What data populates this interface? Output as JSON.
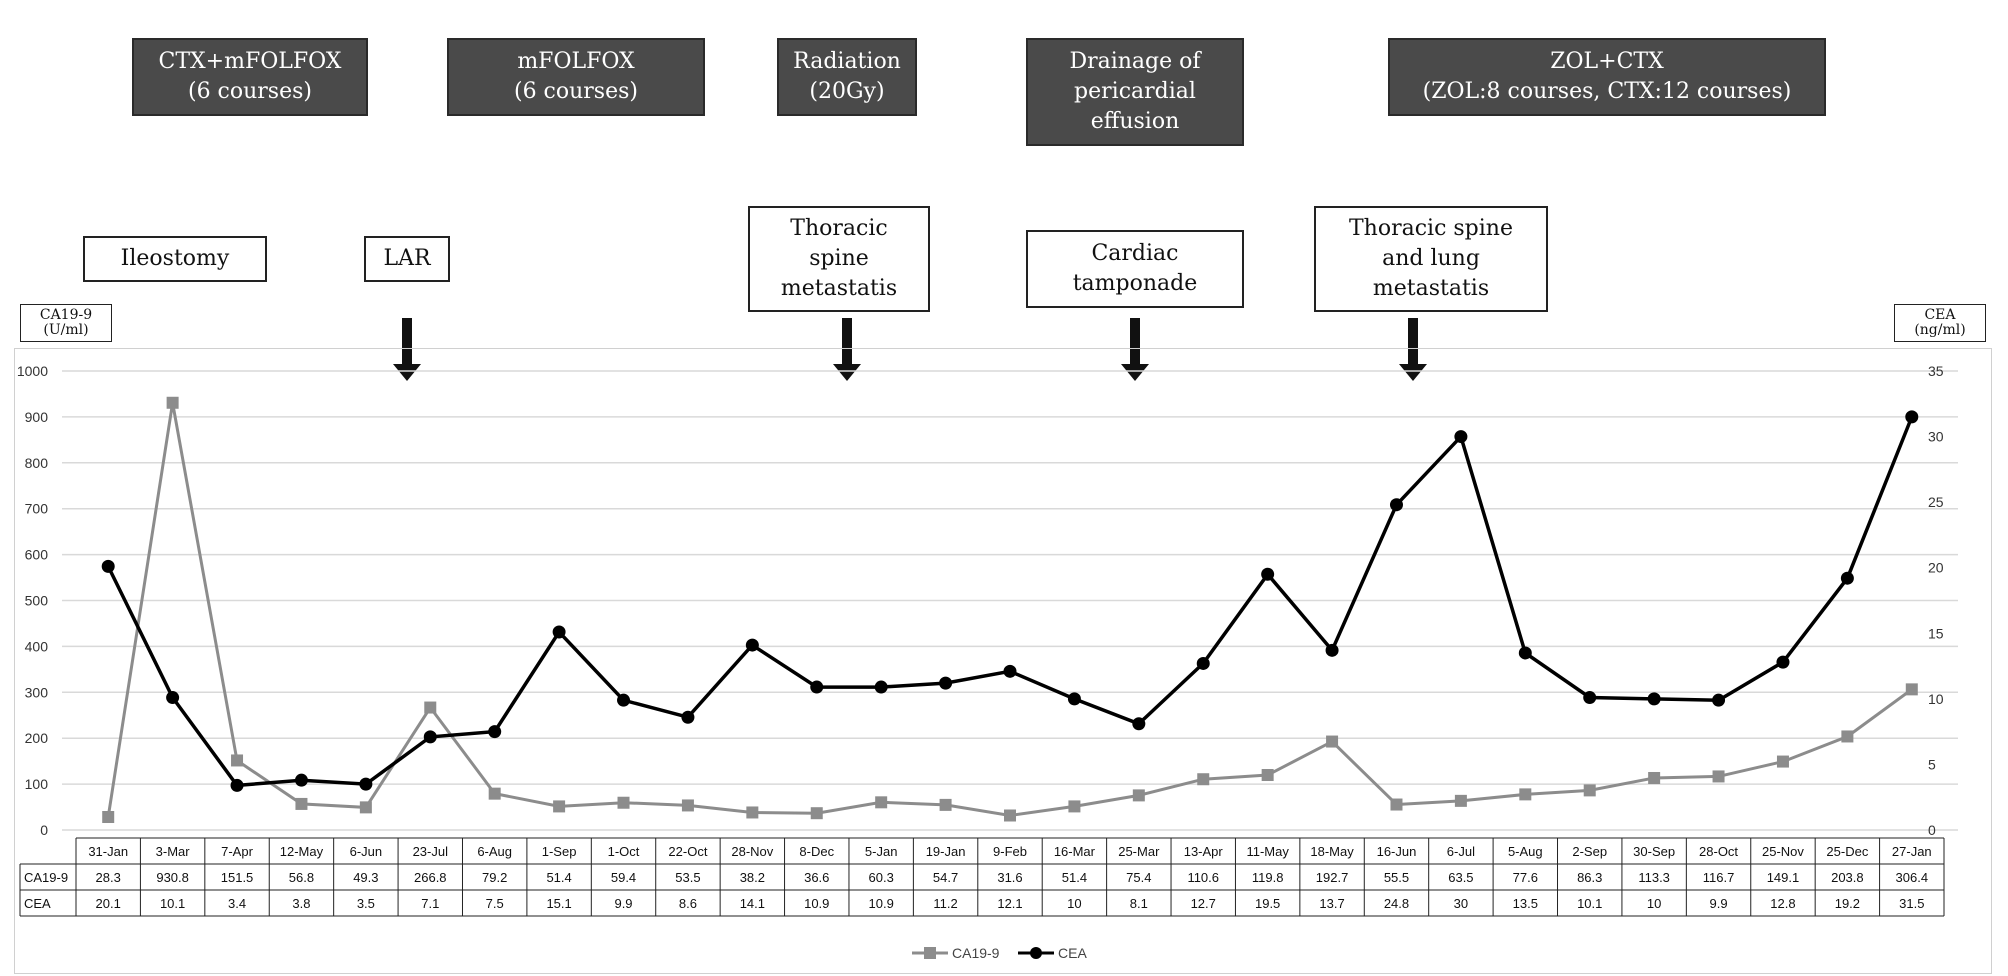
{
  "treatments": [
    {
      "label": "CTX+mFOLFOX\n(6 courses)"
    },
    {
      "label": "mFOLFOX\n(6 courses)"
    },
    {
      "label": "Radiation\n(20Gy)"
    },
    {
      "label": "Drainage of\npericardial\neffusion"
    },
    {
      "label": "ZOL+CTX\n(ZOL:8 courses, CTX:12 courses)"
    }
  ],
  "events": [
    {
      "label": "Ileostomy"
    },
    {
      "label": "LAR"
    },
    {
      "label": "Thoracic\nspine\nmetastatis"
    },
    {
      "label": "Cardiac\ntamponade"
    },
    {
      "label": "Thoracic spine\nand lung\nmetastatis"
    }
  ],
  "left_unit": "CA19-9\n(U/ml)",
  "right_unit": "CEA\n(ng/ml)",
  "colors": {
    "ca199": "#8c8c8c",
    "cea": "#000000",
    "grid": "#d9d9d9",
    "treatment_box": "#4a4a4a"
  },
  "chart_data": {
    "type": "line",
    "categories": [
      "31-Jan",
      "3-Mar",
      "7-Apr",
      "12-May",
      "6-Jun",
      "23-Jul",
      "6-Aug",
      "1-Sep",
      "1-Oct",
      "22-Oct",
      "28-Nov",
      "8-Dec",
      "5-Jan",
      "19-Jan",
      "9-Feb",
      "16-Mar",
      "25-Mar",
      "13-Apr",
      "11-May",
      "18-May",
      "16-Jun",
      "6-Jul",
      "5-Aug",
      "2-Sep",
      "30-Sep",
      "28-Oct",
      "25-Nov",
      "25-Dec",
      "27-Jan"
    ],
    "series": [
      {
        "name": "CA19-9",
        "axis": "left",
        "marker": "square",
        "values": [
          28.3,
          930.8,
          151.5,
          56.8,
          49.3,
          266.8,
          79.2,
          51.4,
          59.4,
          53.5,
          38.2,
          36.6,
          60.3,
          54.7,
          31.6,
          51.4,
          75.4,
          110.6,
          119.8,
          192.7,
          55.5,
          63.5,
          77.6,
          86.3,
          113.3,
          116.7,
          149.1,
          203.8,
          306.4
        ]
      },
      {
        "name": "CEA",
        "axis": "right",
        "marker": "circle",
        "values": [
          20.1,
          10.1,
          3.4,
          3.8,
          3.5,
          7.1,
          7.5,
          15.1,
          9.9,
          8.6,
          14.1,
          10.9,
          10.9,
          11.2,
          12.1,
          10,
          8.1,
          12.7,
          19.5,
          13.7,
          24.8,
          30,
          13.5,
          10.1,
          10,
          9.9,
          12.8,
          19.2,
          31.5
        ]
      }
    ],
    "table_values": {
      "CA19-9": [
        "28.3",
        "930.8",
        "151.5",
        "56.8",
        "49.3",
        "266.8",
        "79.2",
        "51.4",
        "59.4",
        "53.5",
        "38.2",
        "36.6",
        "60.3",
        "54.7",
        "31.6",
        "51.4",
        "75.4",
        "110.6",
        "119.8",
        "192.7",
        "55.5",
        "63.5",
        "77.6",
        "86.3",
        "113.3",
        "116.7",
        "149.1",
        "203.8",
        "306.4"
      ],
      "CEA": [
        "20.1",
        "10.1",
        "3.4",
        "3.8",
        "3.5",
        "7.1",
        "7.5",
        "15.1",
        "9.9",
        "8.6",
        "14.1",
        "10.9",
        "10.9",
        "11.2",
        "12.1",
        "10",
        "8.1",
        "12.7",
        "19.5",
        "13.7",
        "24.8",
        "30",
        "13.5",
        "10.1",
        "10",
        "9.9",
        "12.8",
        "19.2",
        "31.5"
      ]
    },
    "y_left": {
      "min": 0,
      "max": 1000,
      "ticks": [
        "0",
        "100",
        "200",
        "300",
        "400",
        "500",
        "600",
        "700",
        "800",
        "900",
        "1000"
      ]
    },
    "y_right": {
      "min": 0,
      "max": 35,
      "ticks": [
        "0",
        "5",
        "10",
        "15",
        "20",
        "25",
        "30",
        "35"
      ]
    },
    "grid": true,
    "legend_position": "bottom"
  }
}
